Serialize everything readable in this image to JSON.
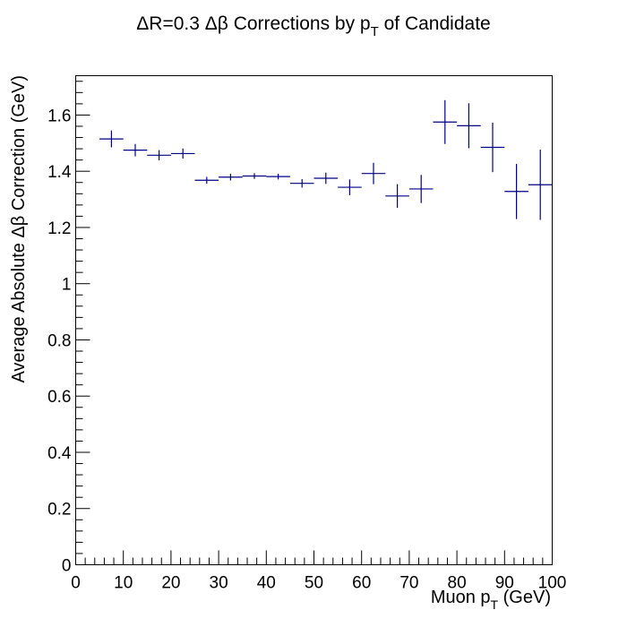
{
  "chart_data": {
    "type": "scatter",
    "title": "ΔR=0.3 Δβ Corrections by p_T of Candidate",
    "title_parts": {
      "pre": "ΔR=0.3 Δβ Corrections by p",
      "sub": "T",
      "post": " of Candidate"
    },
    "xlabel": "Muon p_T (GeV)",
    "xlabel_parts": {
      "pre": "Muon p",
      "sub": "T",
      "post": " (GeV)"
    },
    "ylabel": "Average Absolute Δβ Correction (GeV)",
    "xlim": [
      0,
      100
    ],
    "ylim": [
      0,
      1.74
    ],
    "x_ticks": [
      0,
      10,
      20,
      30,
      40,
      50,
      60,
      70,
      80,
      90,
      100
    ],
    "x_tick_labels": [
      "0",
      "10",
      "20",
      "30",
      "40",
      "50",
      "60",
      "70",
      "80",
      "90",
      "100"
    ],
    "y_ticks": [
      0,
      0.2,
      0.4,
      0.6,
      0.8,
      1.0,
      1.2,
      1.4,
      1.6
    ],
    "y_tick_labels": [
      "0",
      "0.2",
      "0.4",
      "0.6",
      "0.8",
      "1",
      "1.2",
      "1.4",
      "1.6"
    ],
    "grid": false,
    "marker_color": "#000080",
    "series": [
      {
        "points": [
          {
            "x": 7.5,
            "xerr": 2.5,
            "y": 1.515,
            "yerr": 0.03
          },
          {
            "x": 12.5,
            "xerr": 2.5,
            "y": 1.475,
            "yerr": 0.022
          },
          {
            "x": 17.5,
            "xerr": 2.5,
            "y": 1.457,
            "yerr": 0.018
          },
          {
            "x": 22.5,
            "xerr": 2.5,
            "y": 1.463,
            "yerr": 0.018
          },
          {
            "x": 27.5,
            "xerr": 2.5,
            "y": 1.368,
            "yerr": 0.012
          },
          {
            "x": 32.5,
            "xerr": 2.5,
            "y": 1.379,
            "yerr": 0.012
          },
          {
            "x": 37.5,
            "xerr": 2.5,
            "y": 1.383,
            "yerr": 0.01
          },
          {
            "x": 42.5,
            "xerr": 2.5,
            "y": 1.381,
            "yerr": 0.01
          },
          {
            "x": 47.5,
            "xerr": 2.5,
            "y": 1.357,
            "yerr": 0.015
          },
          {
            "x": 52.5,
            "xerr": 2.5,
            "y": 1.375,
            "yerr": 0.02
          },
          {
            "x": 57.5,
            "xerr": 2.5,
            "y": 1.343,
            "yerr": 0.028
          },
          {
            "x": 62.5,
            "xerr": 2.5,
            "y": 1.392,
            "yerr": 0.038
          },
          {
            "x": 67.5,
            "xerr": 2.5,
            "y": 1.312,
            "yerr": 0.042
          },
          {
            "x": 72.5,
            "xerr": 2.5,
            "y": 1.337,
            "yerr": 0.05
          },
          {
            "x": 77.5,
            "xerr": 2.5,
            "y": 1.575,
            "yerr": 0.078
          },
          {
            "x": 82.5,
            "xerr": 2.5,
            "y": 1.562,
            "yerr": 0.08
          },
          {
            "x": 87.5,
            "xerr": 2.5,
            "y": 1.485,
            "yerr": 0.088
          },
          {
            "x": 92.5,
            "xerr": 2.5,
            "y": 1.328,
            "yerr": 0.098
          },
          {
            "x": 97.5,
            "xerr": 2.5,
            "y": 1.352,
            "yerr": 0.125
          }
        ]
      }
    ]
  }
}
